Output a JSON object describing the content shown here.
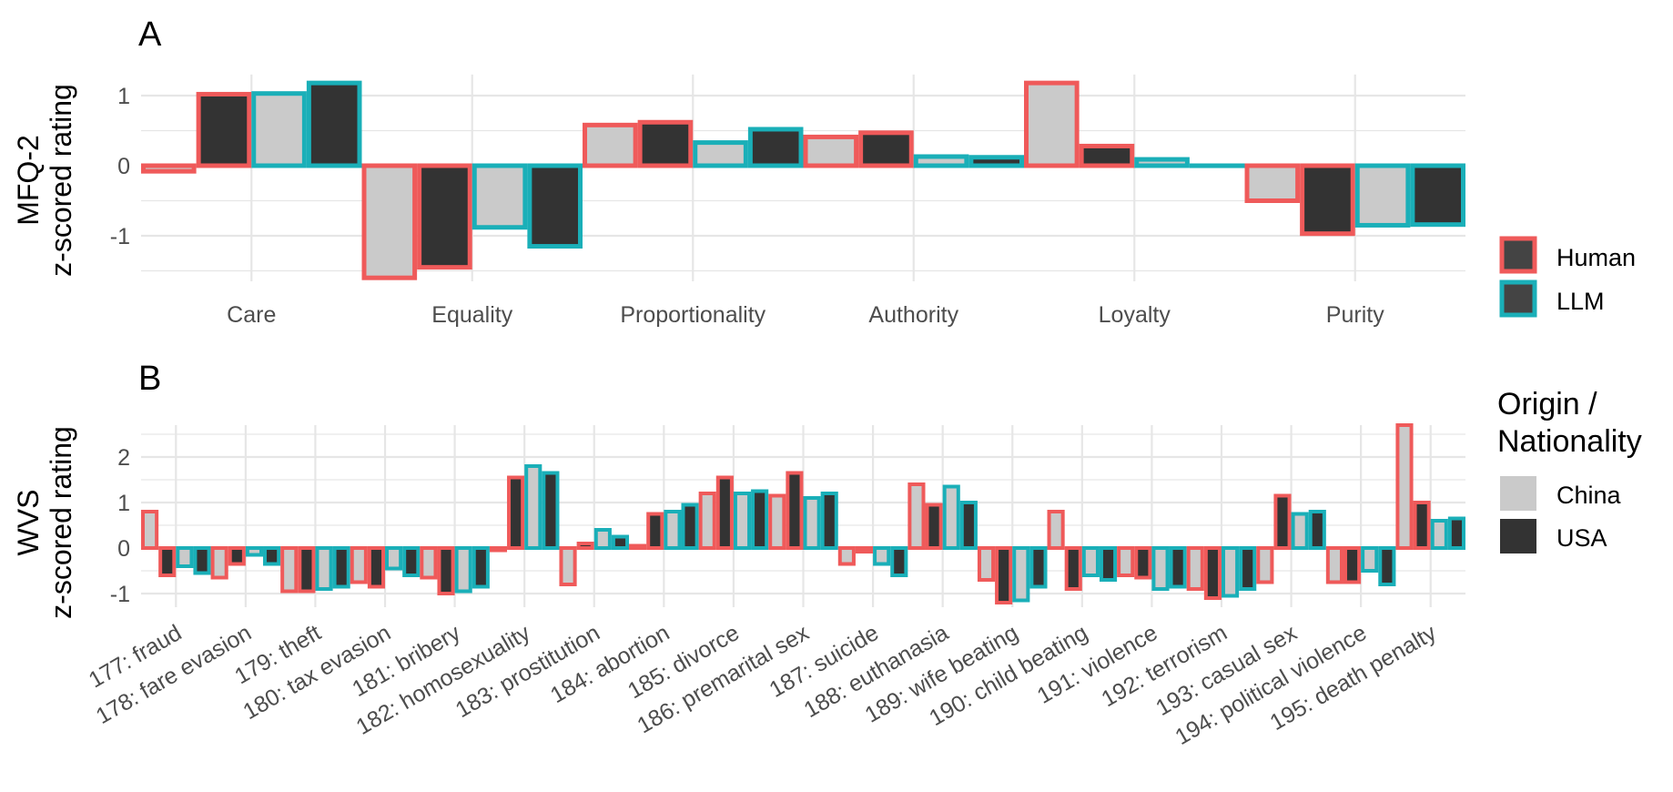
{
  "colors": {
    "human": "#EF5A5A",
    "llm": "#1AAFB8",
    "china": "#CACACA",
    "usa": "#333333",
    "grid": "#E6E6E6",
    "text": "#4D4D4D"
  },
  "legends": {
    "source": {
      "items": [
        "Human",
        "LLM"
      ]
    },
    "origin": {
      "title_line1": "Origin /",
      "title_line2": "Nationality",
      "items": [
        "China",
        "USA"
      ]
    }
  },
  "chart_data": [
    {
      "panel_label": "A",
      "type": "bar",
      "title": "",
      "ylabel_line1": "MFQ-2",
      "ylabel_line2": "z-scored rating",
      "xlabel": "",
      "ylim": [
        -1.65,
        1.3
      ],
      "yticks": [
        1,
        0,
        -1
      ],
      "ytick_labels": [
        "1",
        "0",
        "-1"
      ],
      "categories": [
        "Care",
        "Equality",
        "Proportionality",
        "Authority",
        "Loyalty",
        "Purity"
      ],
      "series": [
        {
          "name": "Human China",
          "source": "Human",
          "origin": "China",
          "values": [
            -0.08,
            -1.6,
            0.58,
            0.41,
            1.18,
            -0.5
          ]
        },
        {
          "name": "Human USA",
          "source": "Human",
          "origin": "USA",
          "values": [
            1.02,
            -1.45,
            0.62,
            0.47,
            0.28,
            -0.97
          ]
        },
        {
          "name": "LLM China",
          "source": "LLM",
          "origin": "China",
          "values": [
            1.03,
            -0.88,
            0.33,
            0.13,
            0.09,
            -0.85
          ]
        },
        {
          "name": "LLM USA",
          "source": "LLM",
          "origin": "USA",
          "values": [
            1.18,
            -1.15,
            0.52,
            0.12,
            0.0,
            -0.84
          ]
        }
      ]
    },
    {
      "panel_label": "B",
      "type": "bar",
      "title": "",
      "ylabel_line1": "WVS",
      "ylabel_line2": "z-scored rating",
      "xlabel": "",
      "ylim": [
        -1.3,
        2.7
      ],
      "yticks": [
        2,
        1,
        0,
        -1
      ],
      "ytick_labels": [
        "2",
        "1",
        "0",
        "-1"
      ],
      "categories": [
        "177: fraud",
        "178: fare evasion",
        "179: theft",
        "180: tax evasion",
        "181: bribery",
        "182: homosexuality",
        "183: prostitution",
        "184: abortion",
        "185: divorce",
        "186: premarital sex",
        "187: suicide",
        "188: euthanasia",
        "189: wife beating",
        "190: child beating",
        "191: violence",
        "192: terrorism",
        "193: casual sex",
        "194: political violence",
        "195: death penalty"
      ],
      "series": [
        {
          "name": "Human China",
          "source": "Human",
          "origin": "China",
          "values": [
            0.8,
            -0.65,
            -0.95,
            -0.75,
            -0.65,
            -0.05,
            -0.8,
            0.05,
            1.2,
            1.15,
            -0.35,
            1.4,
            -0.7,
            0.8,
            -0.6,
            -0.9,
            -0.75,
            -0.75,
            2.7
          ]
        },
        {
          "name": "Human USA",
          "source": "Human",
          "origin": "USA",
          "values": [
            -0.6,
            -0.35,
            -0.95,
            -0.85,
            -1.0,
            1.55,
            0.1,
            0.75,
            1.55,
            1.65,
            -0.08,
            0.95,
            -1.2,
            -0.9,
            -0.65,
            -1.1,
            1.15,
            -0.75,
            1.0
          ]
        },
        {
          "name": "LLM China",
          "source": "LLM",
          "origin": "China",
          "values": [
            -0.4,
            -0.15,
            -0.9,
            -0.45,
            -0.95,
            1.8,
            0.4,
            0.8,
            1.2,
            1.1,
            -0.35,
            1.35,
            -1.15,
            -0.6,
            -0.9,
            -1.05,
            0.75,
            -0.5,
            0.6
          ]
        },
        {
          "name": "LLM USA",
          "source": "LLM",
          "origin": "USA",
          "values": [
            -0.55,
            -0.35,
            -0.85,
            -0.6,
            -0.85,
            1.65,
            0.25,
            0.95,
            1.25,
            1.2,
            -0.6,
            1.0,
            -0.85,
            -0.7,
            -0.85,
            -0.9,
            0.8,
            -0.8,
            0.65
          ]
        }
      ]
    }
  ]
}
